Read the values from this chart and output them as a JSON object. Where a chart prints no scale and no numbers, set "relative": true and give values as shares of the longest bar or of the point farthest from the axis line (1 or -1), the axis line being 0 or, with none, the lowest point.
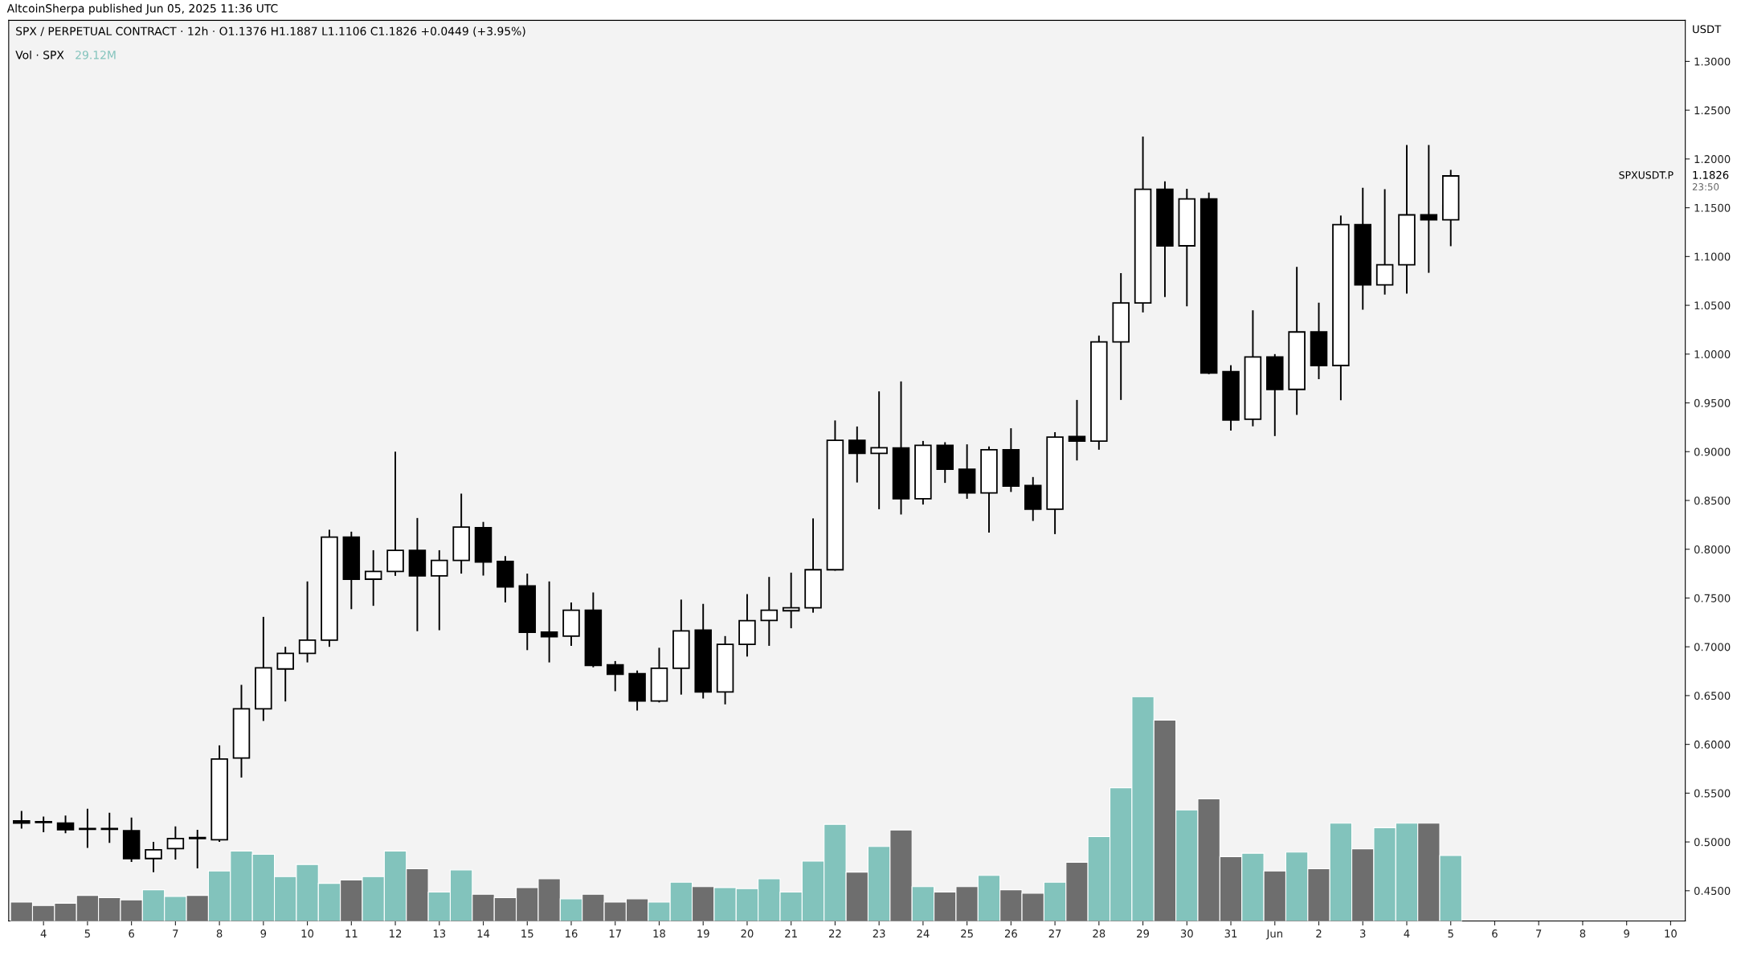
{
  "chart_data": [
    {
      "type": "candlestick",
      "title": "SPX / PERPETUAL CONTRACT · 12h · O1.1376 H1.1887 L1.1106 C1.1826 +0.0449 (+3.95%)",
      "ylabel": "USDT",
      "annotations": [
        "AltcoinSherpa published Jun 05, 2025 11:36 UTC",
        "SPXUSDT.P",
        "1.1826",
        "23:50"
      ],
      "x": [
        "2025-05-03T12:00",
        "2025-05-04T00:00",
        "2025-05-04T12:00",
        "2025-05-05T00:00",
        "2025-05-05T12:00",
        "2025-05-06T00:00",
        "2025-05-06T12:00",
        "2025-05-07T00:00",
        "2025-05-07T12:00",
        "2025-05-08T00:00",
        "2025-05-08T12:00",
        "2025-05-09T00:00",
        "2025-05-09T12:00",
        "2025-05-10T00:00",
        "2025-05-10T12:00",
        "2025-05-11T00:00",
        "2025-05-11T12:00",
        "2025-05-12T00:00",
        "2025-05-12T12:00",
        "2025-05-13T00:00",
        "2025-05-13T12:00",
        "2025-05-14T00:00",
        "2025-05-14T12:00",
        "2025-05-15T00:00",
        "2025-05-15T12:00",
        "2025-05-16T00:00",
        "2025-05-16T12:00",
        "2025-05-17T00:00",
        "2025-05-17T12:00",
        "2025-05-18T00:00",
        "2025-05-18T12:00",
        "2025-05-19T00:00",
        "2025-05-19T12:00",
        "2025-05-20T00:00",
        "2025-05-20T12:00",
        "2025-05-21T00:00",
        "2025-05-21T12:00",
        "2025-05-22T00:00",
        "2025-05-22T12:00",
        "2025-05-23T00:00",
        "2025-05-23T12:00",
        "2025-05-24T00:00",
        "2025-05-24T12:00",
        "2025-05-25T00:00",
        "2025-05-25T12:00",
        "2025-05-26T00:00",
        "2025-05-26T12:00",
        "2025-05-27T00:00",
        "2025-05-27T12:00",
        "2025-05-28T00:00",
        "2025-05-28T12:00",
        "2025-05-29T00:00",
        "2025-05-29T12:00",
        "2025-05-30T00:00",
        "2025-05-30T12:00",
        "2025-05-31T00:00",
        "2025-05-31T12:00",
        "2025-06-01T00:00",
        "2025-06-01T12:00",
        "2025-06-02T00:00",
        "2025-06-02T12:00",
        "2025-06-03T00:00",
        "2025-06-03T12:00",
        "2025-06-04T00:00",
        "2025-06-04T12:00",
        "2025-06-05T00:00"
      ],
      "ohlc": [
        [
          0.5216,
          0.5318,
          0.5136,
          0.5193
        ],
        [
          0.5205,
          0.526,
          0.51,
          0.52
        ],
        [
          0.5193,
          0.527,
          0.509,
          0.5125
        ],
        [
          0.5136,
          0.534,
          0.494,
          0.513
        ],
        [
          0.5136,
          0.53,
          0.499,
          0.513
        ],
        [
          0.5114,
          0.525,
          0.4795,
          0.483
        ],
        [
          0.483,
          0.5,
          0.469,
          0.492
        ],
        [
          0.4932,
          0.516,
          0.482,
          0.5034
        ],
        [
          0.5045,
          0.5125,
          0.473,
          0.5034
        ],
        [
          0.5023,
          0.599,
          0.5,
          0.585
        ],
        [
          0.586,
          0.661,
          0.566,
          0.6364
        ],
        [
          0.6364,
          0.7307,
          0.624,
          0.6784
        ],
        [
          0.6773,
          0.7,
          0.644,
          0.6932
        ],
        [
          0.6932,
          0.767,
          0.684,
          0.7068
        ],
        [
          0.7068,
          0.82,
          0.7,
          0.8125
        ],
        [
          0.8125,
          0.818,
          0.7386,
          0.7693
        ],
        [
          0.7693,
          0.799,
          0.742,
          0.7773
        ],
        [
          0.7773,
          0.9,
          0.7727,
          0.7989
        ],
        [
          0.7989,
          0.832,
          0.716,
          0.7727
        ],
        [
          0.7727,
          0.799,
          0.717,
          0.7886
        ],
        [
          0.7886,
          0.857,
          0.775,
          0.8227
        ],
        [
          0.822,
          0.828,
          0.773,
          0.7869
        ],
        [
          0.7875,
          0.793,
          0.7455,
          0.7614
        ],
        [
          0.7623,
          0.775,
          0.6966,
          0.7148
        ],
        [
          0.715,
          0.767,
          0.684,
          0.7103
        ],
        [
          0.711,
          0.7455,
          0.701,
          0.7375
        ],
        [
          0.7375,
          0.7557,
          0.679,
          0.681
        ],
        [
          0.6814,
          0.6854,
          0.6545,
          0.6718
        ],
        [
          0.6725,
          0.6757,
          0.6347,
          0.6444
        ],
        [
          0.6444,
          0.699,
          0.643,
          0.678
        ],
        [
          0.678,
          0.7484,
          0.651,
          0.7163
        ],
        [
          0.717,
          0.744,
          0.647,
          0.6538
        ],
        [
          0.6538,
          0.711,
          0.641,
          0.7025
        ],
        [
          0.7025,
          0.754,
          0.69,
          0.7268
        ],
        [
          0.727,
          0.7716,
          0.701,
          0.7375
        ],
        [
          0.737,
          0.776,
          0.719,
          0.74
        ],
        [
          0.74,
          0.8316,
          0.735,
          0.779
        ],
        [
          0.779,
          0.932,
          0.778,
          0.9117
        ],
        [
          0.9117,
          0.9258,
          0.8684,
          0.8983
        ],
        [
          0.8983,
          0.9618,
          0.841,
          0.904
        ],
        [
          0.9037,
          0.972,
          0.8356,
          0.8517
        ],
        [
          0.8517,
          0.911,
          0.8458,
          0.9065
        ],
        [
          0.9065,
          0.9097,
          0.868,
          0.882
        ],
        [
          0.882,
          0.9075,
          0.8517,
          0.8577
        ],
        [
          0.8577,
          0.9053,
          0.817,
          0.902
        ],
        [
          0.902,
          0.924,
          0.8587,
          0.8648
        ],
        [
          0.8653,
          0.874,
          0.829,
          0.841
        ],
        [
          0.841,
          0.92,
          0.8155,
          0.915
        ],
        [
          0.9156,
          0.953,
          0.891,
          0.9108
        ],
        [
          0.9108,
          1.019,
          0.902,
          1.0125
        ],
        [
          1.0125,
          1.083,
          0.953,
          1.0525
        ],
        [
          1.0525,
          1.223,
          1.0427,
          1.1689
        ],
        [
          1.1689,
          1.177,
          1.0585,
          1.111
        ],
        [
          1.111,
          1.1694,
          1.049,
          1.159
        ],
        [
          1.159,
          1.1656,
          0.9795,
          0.9806
        ],
        [
          0.982,
          0.9886,
          0.9216,
          0.9324
        ],
        [
          0.9332,
          1.0449,
          0.926,
          0.9971
        ],
        [
          0.9971,
          1.0,
          0.916,
          0.9638
        ],
        [
          0.9638,
          1.0894,
          0.9377,
          1.0227
        ],
        [
          1.0227,
          1.0527,
          0.9743,
          0.9883
        ],
        [
          0.9883,
          1.142,
          0.9527,
          1.1327
        ],
        [
          1.1327,
          1.1705,
          1.0455,
          1.071
        ],
        [
          1.071,
          1.169,
          1.061,
          1.0916
        ],
        [
          1.0916,
          1.2144,
          1.062,
          1.1427
        ],
        [
          1.1427,
          1.2144,
          1.0833,
          1.1376
        ],
        [
          1.1376,
          1.1887,
          1.1106,
          1.1826
        ]
      ],
      "colors": [
        "#000000",
        "#000000",
        "#000000",
        "#000000",
        "#000000",
        "#000000",
        "#ffffff",
        "#ffffff",
        "#000000",
        "#ffffff",
        "#ffffff",
        "#ffffff",
        "#ffffff",
        "#ffffff",
        "#ffffff",
        "#000000",
        "#ffffff",
        "#ffffff",
        "#000000",
        "#ffffff",
        "#ffffff",
        "#000000",
        "#000000",
        "#000000",
        "#000000",
        "#ffffff",
        "#000000",
        "#000000",
        "#000000",
        "#ffffff",
        "#ffffff",
        "#000000",
        "#ffffff",
        "#ffffff",
        "#ffffff",
        "#ffffff",
        "#ffffff",
        "#ffffff",
        "#000000",
        "#ffffff",
        "#000000",
        "#ffffff",
        "#000000",
        "#000000",
        "#ffffff",
        "#000000",
        "#000000",
        "#ffffff",
        "#000000",
        "#ffffff",
        "#ffffff",
        "#ffffff",
        "#000000",
        "#ffffff",
        "#000000",
        "#000000",
        "#ffffff",
        "#000000",
        "#ffffff",
        "#000000",
        "#ffffff",
        "#000000",
        "#ffffff",
        "#ffffff",
        "#000000",
        "#ffffff"
      ],
      "ylim": [
        0.419,
        1.342
      ],
      "yticks": [
        {
          "value": 0.45,
          "label": "0.4500"
        },
        {
          "value": 0.5,
          "label": "0.5000"
        },
        {
          "value": 0.55,
          "label": "0.5500"
        },
        {
          "value": 0.6,
          "label": "0.6000"
        },
        {
          "value": 0.65,
          "label": "0.6500"
        },
        {
          "value": 0.7,
          "label": "0.7000"
        },
        {
          "value": 0.75,
          "label": "0.7500"
        },
        {
          "value": 0.8,
          "label": "0.8000"
        },
        {
          "value": 0.85,
          "label": "0.8500"
        },
        {
          "value": 0.9,
          "label": "0.9000"
        },
        {
          "value": 0.95,
          "label": "0.9500"
        },
        {
          "value": 1.0,
          "label": "1.0000"
        },
        {
          "value": 1.05,
          "label": "1.0500"
        },
        {
          "value": 1.1,
          "label": "1.1000"
        },
        {
          "value": 1.15,
          "label": "1.1500"
        },
        {
          "value": 1.2,
          "label": "1.2000"
        },
        {
          "value": 1.25,
          "label": "1.2500"
        },
        {
          "value": 1.3,
          "label": "1.3000"
        }
      ],
      "xlim": [
        "2025-05-03T05:00",
        "2025-06-10T08:00"
      ],
      "xticks": [
        {
          "value": "2025-05-04",
          "label": "4"
        },
        {
          "value": "2025-05-05",
          "label": "5"
        },
        {
          "value": "2025-05-06",
          "label": "6"
        },
        {
          "value": "2025-05-07",
          "label": "7"
        },
        {
          "value": "2025-05-08",
          "label": "8"
        },
        {
          "value": "2025-05-09",
          "label": "9"
        },
        {
          "value": "2025-05-10",
          "label": "10"
        },
        {
          "value": "2025-05-11",
          "label": "11"
        },
        {
          "value": "2025-05-12",
          "label": "12"
        },
        {
          "value": "2025-05-13",
          "label": "13"
        },
        {
          "value": "2025-05-14",
          "label": "14"
        },
        {
          "value": "2025-05-15",
          "label": "15"
        },
        {
          "value": "2025-05-16",
          "label": "16"
        },
        {
          "value": "2025-05-17",
          "label": "17"
        },
        {
          "value": "2025-05-18",
          "label": "18"
        },
        {
          "value": "2025-05-19",
          "label": "19"
        },
        {
          "value": "2025-05-20",
          "label": "20"
        },
        {
          "value": "2025-05-21",
          "label": "21"
        },
        {
          "value": "2025-05-22",
          "label": "22"
        },
        {
          "value": "2025-05-23",
          "label": "23"
        },
        {
          "value": "2025-05-24",
          "label": "24"
        },
        {
          "value": "2025-05-25",
          "label": "25"
        },
        {
          "value": "2025-05-26",
          "label": "26"
        },
        {
          "value": "2025-05-27",
          "label": "27"
        },
        {
          "value": "2025-05-28",
          "label": "28"
        },
        {
          "value": "2025-05-29",
          "label": "29"
        },
        {
          "value": "2025-05-30",
          "label": "30"
        },
        {
          "value": "2025-05-31",
          "label": "31"
        },
        {
          "value": "2025-06-01",
          "label": "Jun"
        },
        {
          "value": "2025-06-02",
          "label": "2"
        },
        {
          "value": "2025-06-03",
          "label": "3"
        },
        {
          "value": "2025-06-04",
          "label": "4"
        },
        {
          "value": "2025-06-05",
          "label": "5"
        },
        {
          "value": "2025-06-06",
          "label": "6"
        },
        {
          "value": "2025-06-07",
          "label": "7"
        },
        {
          "value": "2025-06-08",
          "label": "8"
        },
        {
          "value": "2025-06-09",
          "label": "9"
        },
        {
          "value": "2025-06-10",
          "label": "10"
        }
      ]
    },
    {
      "type": "bar",
      "relative": true,
      "tick_labels": false,
      "title": "Vol · SPX",
      "annotations": [
        "29.12M"
      ],
      "xlim": [
        "2025-05-03T05:00",
        "2025-06-10T08:00"
      ],
      "x": [
        "2025-05-03T12:00",
        "2025-05-04T00:00",
        "2025-05-04T12:00",
        "2025-05-05T00:00",
        "2025-05-05T12:00",
        "2025-05-06T00:00",
        "2025-05-06T12:00",
        "2025-05-07T00:00",
        "2025-05-07T12:00",
        "2025-05-08T00:00",
        "2025-05-08T12:00",
        "2025-05-09T00:00",
        "2025-05-09T12:00",
        "2025-05-10T00:00",
        "2025-05-10T12:00",
        "2025-05-11T00:00",
        "2025-05-11T12:00",
        "2025-05-12T00:00",
        "2025-05-12T12:00",
        "2025-05-13T00:00",
        "2025-05-13T12:00",
        "2025-05-14T00:00",
        "2025-05-14T12:00",
        "2025-05-15T00:00",
        "2025-05-15T12:00",
        "2025-05-16T00:00",
        "2025-05-16T12:00",
        "2025-05-17T00:00",
        "2025-05-17T12:00",
        "2025-05-18T00:00",
        "2025-05-18T12:00",
        "2025-05-19T00:00",
        "2025-05-19T12:00",
        "2025-05-20T00:00",
        "2025-05-20T12:00",
        "2025-05-21T00:00",
        "2025-05-21T12:00",
        "2025-05-22T00:00",
        "2025-05-22T12:00",
        "2025-05-23T00:00",
        "2025-05-23T12:00",
        "2025-05-24T00:00",
        "2025-05-24T12:00",
        "2025-05-25T00:00",
        "2025-05-25T12:00",
        "2025-05-26T00:00",
        "2025-05-26T12:00",
        "2025-05-27T00:00",
        "2025-05-27T12:00",
        "2025-05-28T00:00",
        "2025-05-28T12:00",
        "2025-05-29T00:00",
        "2025-05-29T12:00",
        "2025-05-30T00:00",
        "2025-05-30T12:00",
        "2025-05-31T00:00",
        "2025-05-31T12:00",
        "2025-06-01T00:00",
        "2025-06-01T12:00",
        "2025-06-02T00:00",
        "2025-06-02T12:00",
        "2025-06-03T00:00",
        "2025-06-03T12:00",
        "2025-06-04T00:00",
        "2025-06-04T12:00",
        "2025-06-05T00:00"
      ],
      "values": [
        0.084,
        0.069,
        0.079,
        0.114,
        0.104,
        0.094,
        0.139,
        0.109,
        0.114,
        0.223,
        0.312,
        0.297,
        0.198,
        0.252,
        0.168,
        0.183,
        0.198,
        0.312,
        0.233,
        0.129,
        0.228,
        0.119,
        0.104,
        0.149,
        0.188,
        0.099,
        0.119,
        0.084,
        0.099,
        0.084,
        0.173,
        0.153,
        0.149,
        0.144,
        0.188,
        0.129,
        0.267,
        0.431,
        0.218,
        0.332,
        0.406,
        0.153,
        0.129,
        0.153,
        0.203,
        0.139,
        0.124,
        0.173,
        0.262,
        0.376,
        0.594,
        1,
        0.896,
        0.495,
        0.545,
        0.287,
        0.302,
        0.223,
        0.307,
        0.233,
        0.436,
        0.322,
        0.416,
        0.436,
        0.436,
        0.292
      ],
      "colors": [
        "#6e6e6e",
        "#6e6e6e",
        "#6e6e6e",
        "#6e6e6e",
        "#6e6e6e",
        "#6e6e6e",
        "#82c3bc",
        "#82c3bc",
        "#6e6e6e",
        "#82c3bc",
        "#82c3bc",
        "#82c3bc",
        "#82c3bc",
        "#82c3bc",
        "#82c3bc",
        "#6e6e6e",
        "#82c3bc",
        "#82c3bc",
        "#6e6e6e",
        "#82c3bc",
        "#82c3bc",
        "#6e6e6e",
        "#6e6e6e",
        "#6e6e6e",
        "#6e6e6e",
        "#82c3bc",
        "#6e6e6e",
        "#6e6e6e",
        "#6e6e6e",
        "#82c3bc",
        "#82c3bc",
        "#6e6e6e",
        "#82c3bc",
        "#82c3bc",
        "#82c3bc",
        "#82c3bc",
        "#82c3bc",
        "#82c3bc",
        "#6e6e6e",
        "#82c3bc",
        "#6e6e6e",
        "#82c3bc",
        "#6e6e6e",
        "#6e6e6e",
        "#82c3bc",
        "#6e6e6e",
        "#6e6e6e",
        "#82c3bc",
        "#6e6e6e",
        "#82c3bc",
        "#82c3bc",
        "#82c3bc",
        "#6e6e6e",
        "#82c3bc",
        "#6e6e6e",
        "#6e6e6e",
        "#82c3bc",
        "#6e6e6e",
        "#82c3bc",
        "#6e6e6e",
        "#82c3bc",
        "#6e6e6e",
        "#82c3bc",
        "#82c3bc",
        "#6e6e6e",
        "#82c3bc"
      ]
    }
  ]
}
